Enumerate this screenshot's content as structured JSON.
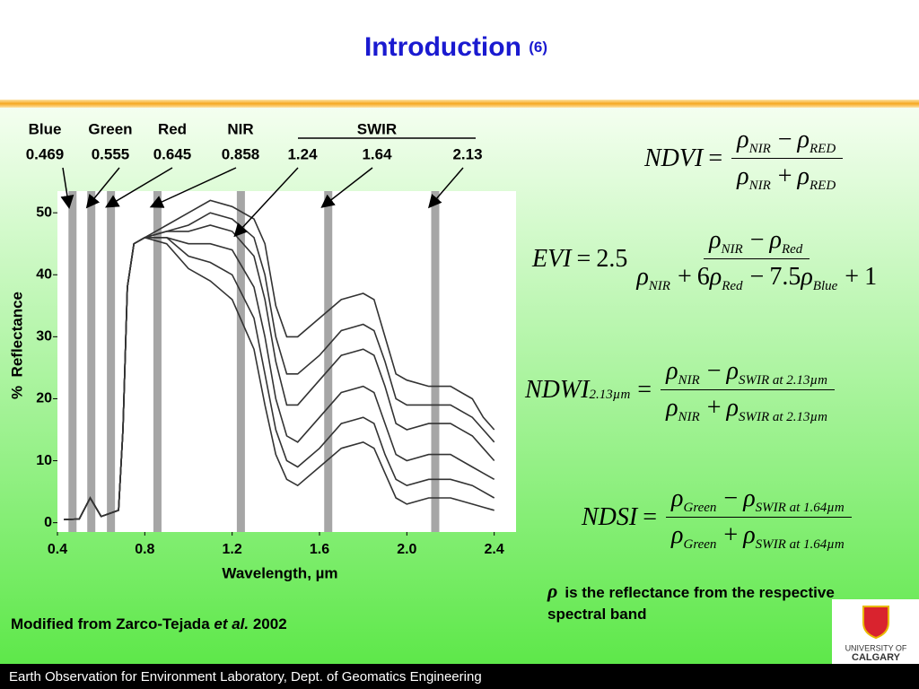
{
  "title": "Introduction",
  "title_suffix": "(6)",
  "credit": {
    "text": "Modified from Zarco-Tejada ",
    "italic": "et al.",
    "year": " 2002"
  },
  "note": {
    "symbol": "ρ",
    "text": "is the reflectance from the respective spectral band"
  },
  "footer": "Earth Observation for Environment Laboratory, Dept. of Geomatics Engineering",
  "logo": {
    "line1": "UNIVERSITY OF",
    "line2": "CALGARY"
  },
  "equations": [
    {
      "lhs": [
        "NDVI"
      ],
      "rel": "=",
      "num": [
        "ρ",
        {
          "sub": "NIR"
        },
        "−",
        "ρ",
        {
          "sub": "RED"
        }
      ],
      "den": [
        "ρ",
        {
          "sub": "NIR"
        },
        "+",
        "ρ",
        {
          "sub": "RED"
        }
      ]
    },
    {
      "lhs": [
        "EVI"
      ],
      "rel": "=",
      "coef": "2.5",
      "num": [
        "ρ",
        {
          "sub": "NIR"
        },
        "−",
        "ρ",
        {
          "sub": "Red"
        }
      ],
      "den": [
        "ρ",
        {
          "sub": "NIR"
        },
        "+",
        "6",
        "ρ",
        {
          "sub": "Red"
        },
        "−",
        "7.5",
        "ρ",
        {
          "sub": "Blue"
        },
        "+",
        "1"
      ]
    },
    {
      "lhs": [
        "NDWI",
        {
          "sub": "2.13µm"
        }
      ],
      "rel": "=",
      "num": [
        "ρ",
        {
          "sub": "NIR"
        },
        "−",
        "ρ",
        {
          "sub": "SWIR at 2.13µm"
        }
      ],
      "den": [
        "ρ",
        {
          "sub": "NIR"
        },
        "+",
        "ρ",
        {
          "sub": "SWIR at 2.13µm"
        }
      ]
    },
    {
      "lhs": [
        "NDSI"
      ],
      "rel": "=",
      "num": [
        "ρ",
        {
          "sub": "Green"
        },
        "−",
        "ρ",
        {
          "sub": "SWIR at 1.64µm"
        }
      ],
      "den": [
        "ρ",
        {
          "sub": "Green"
        },
        "+",
        "ρ",
        {
          "sub": "SWIR at 1.64µm"
        }
      ]
    }
  ],
  "chart_data": {
    "type": "line",
    "x_label": "Wavelength, µm",
    "y_label": "%  Reflectance",
    "xlim": [
      0.4,
      2.5
    ],
    "ylim": [
      -1.5,
      53.5
    ],
    "xticks": [
      0.4,
      0.8,
      1.2,
      1.6,
      {
        "value": 2,
        "label": "2.0"
      },
      2.4
    ],
    "yticks": [
      0,
      10,
      20,
      30,
      40,
      50
    ],
    "swir_label": "SWIR",
    "bands": [
      {
        "name": "Blue",
        "value": 0.469
      },
      {
        "name": "Green",
        "value": 0.555
      },
      {
        "name": "Red",
        "value": 0.645
      },
      {
        "name": "NIR",
        "value": 0.858
      },
      {
        "value": 1.24
      },
      {
        "value": 1.64
      },
      {
        "value": 2.13
      }
    ],
    "band_color": "#a6a6a6",
    "x": [
      0.43,
      0.5,
      0.55,
      0.6,
      0.68,
      0.7,
      0.72,
      0.75,
      0.8,
      0.9,
      1.0,
      1.1,
      1.2,
      1.3,
      1.35,
      1.4,
      1.45,
      1.5,
      1.6,
      1.7,
      1.8,
      1.85,
      1.9,
      1.95,
      2.0,
      2.1,
      2.2,
      2.3,
      2.35,
      2.4
    ],
    "series": [
      {
        "color": "#333333",
        "values": [
          0.5,
          0.6,
          4,
          1,
          2,
          15,
          38,
          45,
          46,
          48,
          50,
          52,
          51,
          49,
          45,
          35,
          30,
          30,
          33,
          36,
          37,
          36,
          30,
          24,
          23,
          22,
          22,
          20,
          17,
          15
        ]
      },
      {
        "color": "#333333",
        "values": [
          0.5,
          0.6,
          4,
          1,
          2,
          15,
          38,
          45,
          46,
          47,
          48,
          50,
          49,
          46,
          40,
          30,
          24,
          24,
          27,
          31,
          32,
          31,
          26,
          20,
          19,
          19,
          19,
          17,
          15,
          13
        ]
      },
      {
        "color": "#333333",
        "values": [
          0.5,
          0.6,
          4,
          1,
          2,
          15,
          38,
          45,
          46,
          47,
          47,
          48,
          47,
          43,
          36,
          26,
          19,
          19,
          23,
          27,
          28,
          27,
          22,
          16,
          15,
          16,
          16,
          14,
          12,
          10
        ]
      },
      {
        "color": "#333333",
        "values": [
          0.5,
          0.6,
          4,
          1,
          2,
          15,
          38,
          45,
          46,
          46,
          45,
          45,
          44,
          38,
          30,
          20,
          14,
          13,
          17,
          21,
          22,
          21,
          16,
          11,
          10,
          11,
          11,
          9,
          8,
          7
        ]
      },
      {
        "color": "#333333",
        "values": [
          0.5,
          0.6,
          4,
          1,
          2,
          15,
          38,
          45,
          46,
          46,
          43,
          42,
          40,
          33,
          24,
          15,
          10,
          9,
          12,
          16,
          17,
          16,
          11,
          7,
          6,
          7,
          7,
          6,
          5,
          4
        ]
      },
      {
        "color": "#333333",
        "values": [
          0.5,
          0.6,
          4,
          1,
          2,
          15,
          38,
          45,
          46,
          45,
          41,
          39,
          36,
          28,
          19,
          11,
          7,
          6,
          9,
          12,
          13,
          12,
          8,
          4,
          3,
          4,
          4,
          3,
          2.5,
          2
        ]
      }
    ]
  }
}
